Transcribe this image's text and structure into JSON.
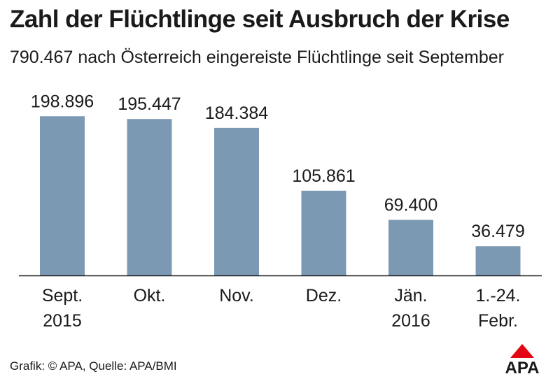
{
  "title": "Zahl der Flüchtlinge seit Ausbruch der Krise",
  "subtitle": "790.467 nach Österreich eingereiste Flüchtlinge seit September",
  "footer": "Grafik: © APA, Quelle: APA/BMI",
  "logo": "APA",
  "colors": {
    "bar": "#7c99b4",
    "text": "#1a1a1a",
    "logo_red": "#e30613"
  },
  "chart_data": {
    "type": "bar",
    "title": "Zahl der Flüchtlinge seit Ausbruch der Krise",
    "subtitle": "790.467 nach Österreich eingereiste Flüchtlinge seit September",
    "categories": [
      [
        "Sept.",
        "2015"
      ],
      [
        "Okt."
      ],
      [
        "Nov."
      ],
      [
        "Dez."
      ],
      [
        "Jän.",
        "2016"
      ],
      [
        "1.-24.",
        "Febr."
      ]
    ],
    "values": [
      198896,
      195447,
      184384,
      105861,
      69400,
      36479
    ],
    "value_labels": [
      "198.896",
      "195.447",
      "184.384",
      "105.861",
      "69.400",
      "36.479"
    ],
    "ylim": [
      0,
      200000
    ],
    "grid": false,
    "legend": "none"
  }
}
